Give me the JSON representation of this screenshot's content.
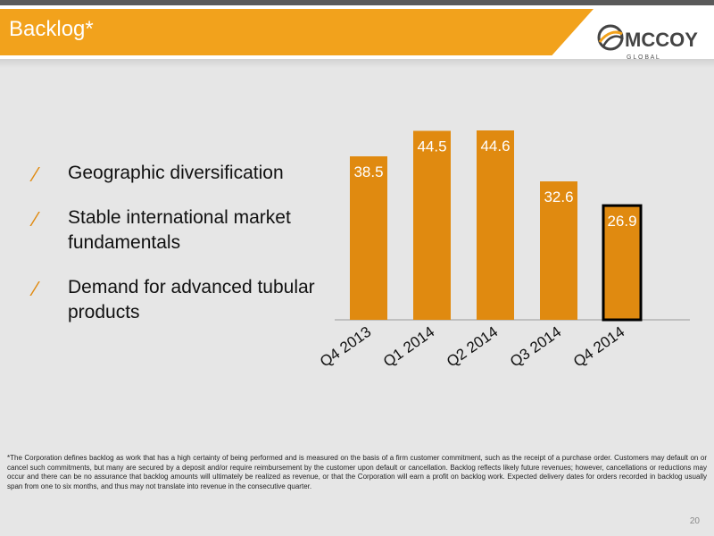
{
  "header": {
    "title": "Backlog*",
    "logo_text_main": "MCCOY",
    "logo_text_sub": "G L O B A L"
  },
  "bullets": [
    {
      "text": "Geographic diversification"
    },
    {
      "text": "Stable international market fundamentals"
    },
    {
      "text": "Demand for advanced tubular products"
    }
  ],
  "bullet_mark": "⁄",
  "chart_data": {
    "type": "bar",
    "categories": [
      "Q4 2013",
      "Q1 2014",
      "Q2 2014",
      "Q3 2014",
      "Q4 2014"
    ],
    "values": [
      38.5,
      44.5,
      44.6,
      32.6,
      26.9
    ],
    "data_labels": [
      "38.5",
      "44.5",
      "44.6",
      "32.6",
      "26.9"
    ],
    "highlight_index": 4,
    "title": "",
    "xlabel": "",
    "ylabel": "",
    "ylim": [
      0,
      50
    ],
    "grid": false,
    "legend": "none",
    "bar_color": "#e08a10",
    "highlight_border_color": "#000000",
    "label_color": "#ffffff"
  },
  "footnote": "*The Corporation defines backlog as work that has a high certainty of being performed and is measured on the basis of a firm customer commitment, such as the receipt of a purchase order. Customers may default on or cancel such commitments, but many are secured by a deposit and/or require reimbursement by the customer upon default or cancellation. Backlog reflects likely future revenues; however, cancellations or reductions may occur and there can be no assurance that backlog amounts will ultimately be realized as revenue, or that the Corporation will earn a profit on backlog work. Expected delivery dates for orders recorded in backlog usually span from one to six months, and thus may not translate into revenue in the consecutive quarter.",
  "page_number": "20",
  "colors": {
    "accent": "#f2a21c",
    "bar": "#e08a10",
    "background": "#e6e6e6"
  },
  "icons": {
    "logo": "mccoy-globe-logo"
  }
}
